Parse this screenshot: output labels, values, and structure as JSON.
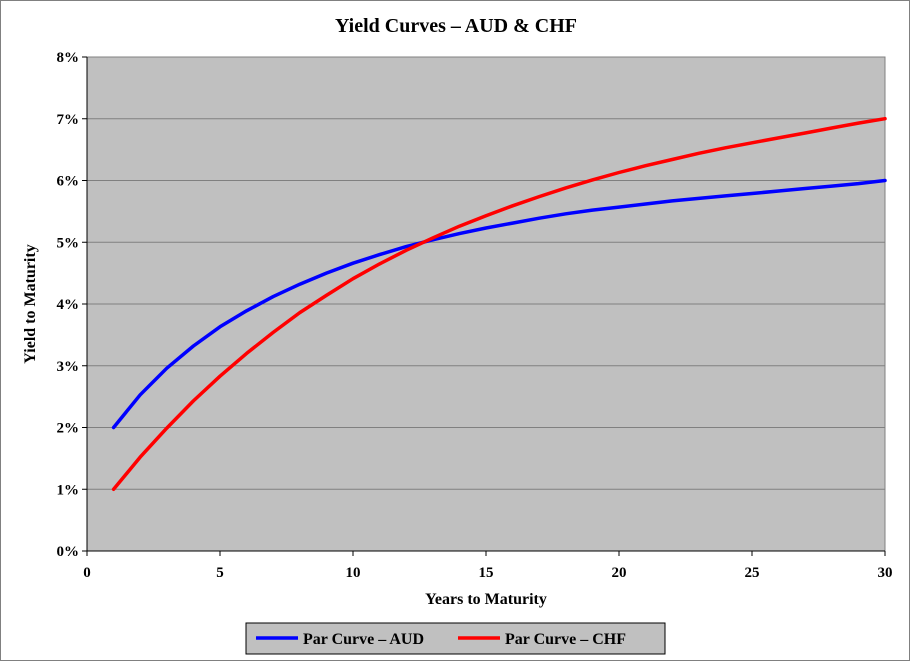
{
  "chart_data": {
    "type": "line",
    "title": "Yield Curves – AUD & CHF",
    "xlabel": "Years to Maturity",
    "ylabel": "Yield to Maturity",
    "xlim": [
      0,
      30
    ],
    "ylim": [
      0,
      0.08
    ],
    "x_ticks": [
      "0",
      "5",
      "10",
      "15",
      "20",
      "25",
      "30"
    ],
    "y_ticks": [
      "0%",
      "1%",
      "2%",
      "3%",
      "4%",
      "5%",
      "6%",
      "7%",
      "8%"
    ],
    "grid": true,
    "legend_position": "bottom",
    "plot_background": "#c0c0c0",
    "series": [
      {
        "name": "Par Curve – AUD",
        "color": "#0000ff",
        "x": [
          1,
          2,
          3,
          4,
          5,
          6,
          7,
          8,
          9,
          10,
          11,
          12,
          13,
          14,
          15,
          16,
          17,
          18,
          19,
          20,
          21,
          22,
          23,
          24,
          25,
          26,
          27,
          28,
          29,
          30
        ],
        "y": [
          0.02,
          0.0253,
          0.0296,
          0.0332,
          0.0363,
          0.0389,
          0.0412,
          0.0432,
          0.045,
          0.0466,
          0.048,
          0.0493,
          0.0504,
          0.0514,
          0.0523,
          0.0531,
          0.0539,
          0.0546,
          0.0552,
          0.0557,
          0.0562,
          0.0567,
          0.0571,
          0.0575,
          0.0579,
          0.0583,
          0.0587,
          0.0591,
          0.0595,
          0.06
        ]
      },
      {
        "name": "Par Curve – CHF",
        "color": "#ff0000",
        "x": [
          1,
          2,
          3,
          4,
          5,
          6,
          7,
          8,
          9,
          10,
          11,
          12,
          13,
          14,
          15,
          16,
          17,
          18,
          19,
          20,
          21,
          22,
          23,
          24,
          25,
          26,
          27,
          28,
          29,
          30
        ],
        "y": [
          0.01,
          0.0152,
          0.0199,
          0.0243,
          0.0283,
          0.032,
          0.0354,
          0.0386,
          0.0414,
          0.0441,
          0.0465,
          0.0487,
          0.0507,
          0.0526,
          0.0543,
          0.0559,
          0.0574,
          0.0588,
          0.0601,
          0.0613,
          0.0624,
          0.0634,
          0.0644,
          0.0653,
          0.0661,
          0.0669,
          0.0677,
          0.0685,
          0.0693,
          0.07
        ]
      }
    ]
  }
}
